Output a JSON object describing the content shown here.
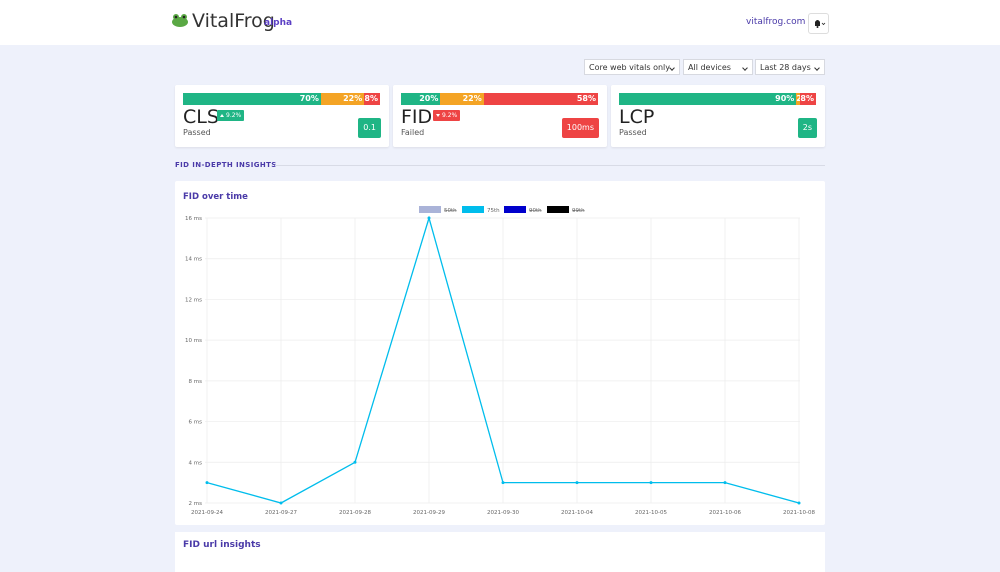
{
  "header": {
    "brand": "VitalFrog",
    "tag": "alpha",
    "site": "vitalfrog.com"
  },
  "filters": [
    "Core web vitals only",
    "All devices",
    "Last 28 days"
  ],
  "cards": [
    {
      "metric": "CLS",
      "distribution": {
        "values": [
          70,
          22,
          8
        ],
        "value_labels": [
          "70%",
          "22%",
          "8%"
        ],
        "colors": [
          "#1fb585",
          "#f4a425",
          "#ee4444"
        ]
      },
      "change": "9.2%",
      "direction": "up",
      "status": "Passed",
      "value": "0.1",
      "value_color": "#1fb585"
    },
    {
      "metric": "FID",
      "distribution": {
        "values": [
          20,
          22,
          58
        ],
        "value_labels": [
          "20%",
          "22%",
          "58%"
        ],
        "colors": [
          "#1fb585",
          "#f4a425",
          "#ee4444"
        ]
      },
      "change": "9.2%",
      "direction": "down",
      "status": "Failed",
      "value": "100ms",
      "value_color": "#ee4444"
    },
    {
      "metric": "LCP",
      "distribution": {
        "values": [
          90,
          2,
          8
        ],
        "value_labels": [
          "90%",
          "2",
          "8%"
        ],
        "colors": [
          "#1fb585",
          "#f4a425",
          "#ee4444"
        ]
      },
      "change": null,
      "direction": null,
      "status": "Passed",
      "value": "2s",
      "value_color": "#1fb585"
    }
  ],
  "section_title": "FID IN-DEPTH INSIGHTS",
  "chart_data": {
    "type": "line",
    "title": "FID over time",
    "categories": [
      "2021-09-24",
      "2021-09-27",
      "2021-09-28",
      "2021-09-29",
      "2021-09-30",
      "2021-10-04",
      "2021-10-05",
      "2021-10-06",
      "2021-10-08"
    ],
    "series": [
      {
        "name": "50th",
        "color": "#aab3d8",
        "hidden": true
      },
      {
        "name": "75th",
        "color": "#00bdec",
        "values": [
          3,
          2,
          4,
          16,
          3,
          3,
          3,
          3,
          2
        ]
      },
      {
        "name": "90th",
        "color": "#0000cc",
        "hidden": true
      },
      {
        "name": "99th",
        "color": "#000000",
        "hidden": true
      }
    ],
    "ylim": [
      2,
      16
    ],
    "yticks": [
      {
        "value": 2,
        "label": "2 ms"
      },
      {
        "value": 4,
        "label": "4 ms"
      },
      {
        "value": 6,
        "label": "6 ms"
      },
      {
        "value": 8,
        "label": "8 ms"
      },
      {
        "value": 10,
        "label": "10 ms"
      },
      {
        "value": 12,
        "label": "12 ms"
      },
      {
        "value": 14,
        "label": "14 ms"
      },
      {
        "value": 16,
        "label": "16 ms"
      }
    ],
    "grid": true
  },
  "next_section": "FID url insights"
}
